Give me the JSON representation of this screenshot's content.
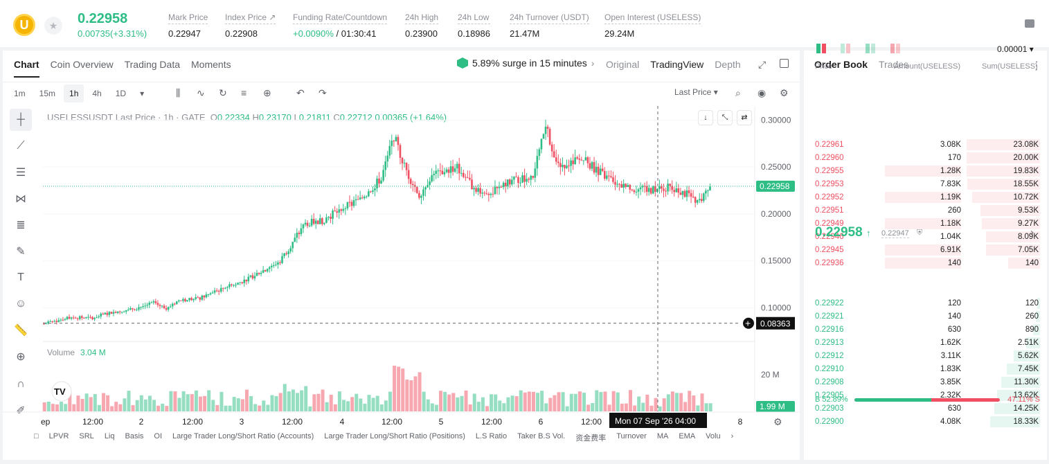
{
  "header": {
    "logo_letter": "U",
    "price": "0.22958",
    "change": "0.00735(+3.31%)",
    "stats": [
      {
        "label": "Mark Price",
        "value": "0.22947"
      },
      {
        "label": "Index Price ↗",
        "value": "0.22908"
      },
      {
        "label": "Funding Rate/Countdown",
        "value": "+0.0090%",
        "value2": "/ 01:30:41"
      },
      {
        "label": "24h High",
        "value": "0.23900"
      },
      {
        "label": "24h Low",
        "value": "0.18986"
      },
      {
        "label": "24h Turnover (USDT)",
        "value": "21.47M"
      },
      {
        "label": "Open Interest (USELESS)",
        "value": "29.24M"
      }
    ]
  },
  "chart_tabs": [
    "Chart",
    "Coin Overview",
    "Trading Data",
    "Moments"
  ],
  "surge": "5.89% surge in 15 minutes",
  "views": [
    "Original",
    "TradingView",
    "Depth"
  ],
  "timeframes": [
    "1m",
    "15m",
    "1h",
    "4h",
    "1D"
  ],
  "last_price_label": "Last Price",
  "legend": {
    "symbol": "USELESSUSDT Last Price · 1h · GATE",
    "o": "0.22334",
    "h": "0.23170",
    "l": "0.21811",
    "c": "0.22712",
    "chg": "0.00365 (+1.64%)"
  },
  "price_axis": [
    "0.30000",
    "0.25000",
    "0.20000",
    "0.15000",
    "0.10000"
  ],
  "current_price_tag": "0.22958",
  "cursor_price_tag": "0.08363",
  "volume": {
    "label": "Volume",
    "value": "3.04 M",
    "axis": "20 M",
    "tag": "1.99 M"
  },
  "time_axis": [
    "ep",
    "12:00",
    "2",
    "12:00",
    "3",
    "12:00",
    "4",
    "12:00",
    "5",
    "12:00",
    "6",
    "12:00",
    "8"
  ],
  "crosshair_time": "Mon 07 Sep '26  04:00",
  "indicators": [
    "LPVR",
    "SRL",
    "Liq",
    "Basis",
    "OI",
    "Large Trader Long/Short Ratio (Accounts)",
    "Large Trader Long/Short Ratio (Positions)",
    "L.S Ratio",
    "Taker B.S Vol.",
    "资金费率",
    "Turnover",
    "MA",
    "EMA",
    "Volu"
  ],
  "orderbook": {
    "tabs": [
      "Order Book",
      "Trades"
    ],
    "precision": "0.00001",
    "headers": [
      "Price",
      "Amount(USELESS)",
      "Sum(USELESS)"
    ],
    "asks": [
      [
        "0.22961",
        "3.08K",
        "23.08K"
      ],
      [
        "0.22960",
        "170",
        "20.00K"
      ],
      [
        "0.22955",
        "1.28K",
        "19.83K"
      ],
      [
        "0.22953",
        "7.83K",
        "18.55K"
      ],
      [
        "0.22952",
        "1.19K",
        "10.72K"
      ],
      [
        "0.22951",
        "260",
        "9.53K"
      ],
      [
        "0.22949",
        "1.18K",
        "9.27K"
      ],
      [
        "0.22946",
        "1.04K",
        "8.09K"
      ],
      [
        "0.22945",
        "6.91K",
        "7.05K"
      ],
      [
        "0.22936",
        "140",
        "140"
      ]
    ],
    "mid_price": "0.22958",
    "mid_ref": "0.22947",
    "bids": [
      [
        "0.22922",
        "120",
        "120"
      ],
      [
        "0.22921",
        "140",
        "260"
      ],
      [
        "0.22916",
        "630",
        "890"
      ],
      [
        "0.22913",
        "1.62K",
        "2.51K"
      ],
      [
        "0.22912",
        "3.11K",
        "5.62K"
      ],
      [
        "0.22910",
        "1.83K",
        "7.45K"
      ],
      [
        "0.22908",
        "3.85K",
        "11.30K"
      ],
      [
        "0.22905",
        "2.32K",
        "13.62K"
      ],
      [
        "0.22903",
        "630",
        "14.25K"
      ],
      [
        "0.22900",
        "4.08K",
        "18.33K"
      ]
    ],
    "buy_ratio": "B 52.89%",
    "sell_ratio": "47.11% S",
    "buy_fraction": 0.5289
  },
  "colors": {
    "up": "#2dbd85",
    "down": "#ef4f60"
  }
}
